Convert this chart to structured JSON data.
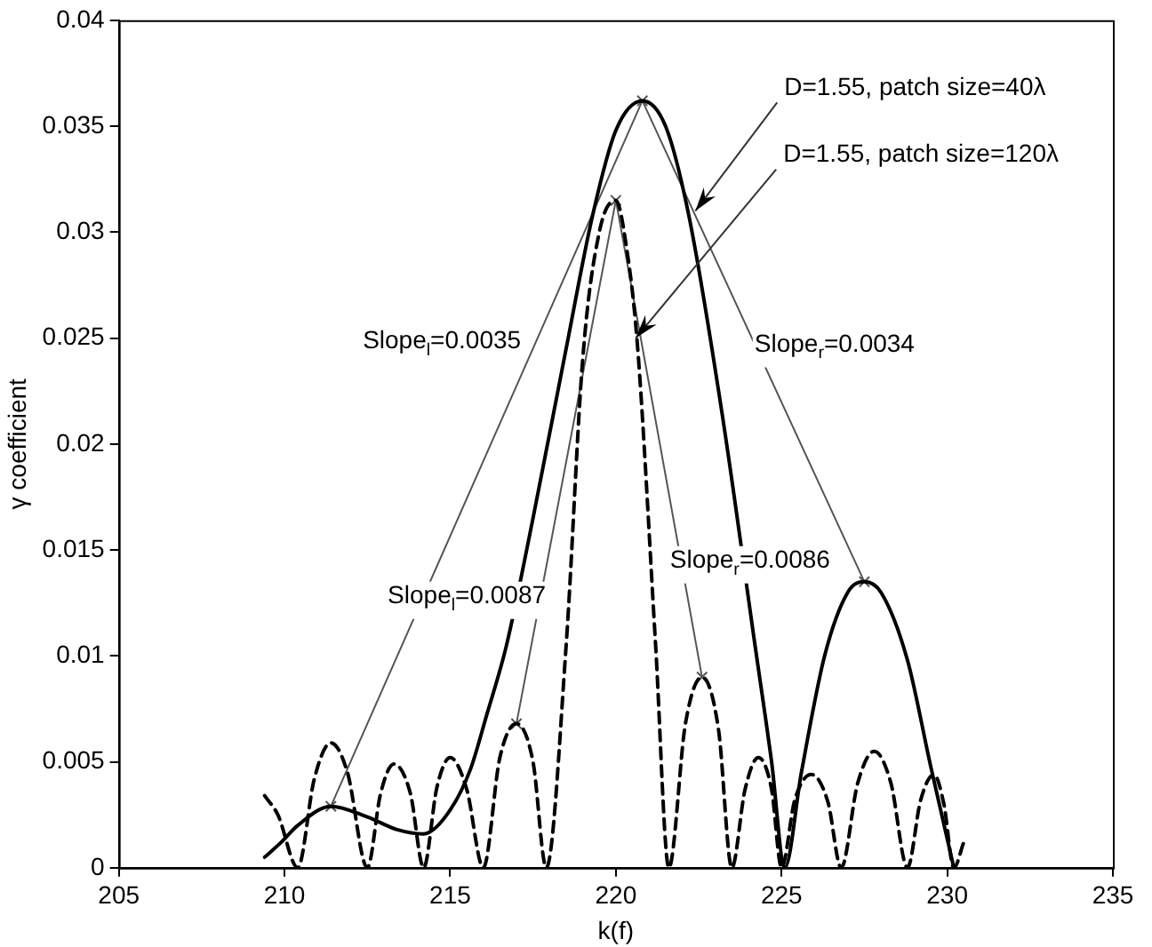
{
  "chart_data": {
    "type": "line",
    "xlabel": "k(f)",
    "ylabel": "γ coefficient",
    "xlim": [
      205,
      235
    ],
    "xticks": [
      205,
      210,
      215,
      220,
      225,
      230,
      235
    ],
    "ylim": [
      0,
      0.04
    ],
    "yticks": [
      0,
      0.005,
      0.01,
      0.015,
      0.02,
      0.025,
      0.03,
      0.035,
      0.04
    ],
    "grid": false,
    "legend": false,
    "series": [
      {
        "type": "line",
        "color": "#000000",
        "line_style": "solid",
        "marker": "none",
        "x": [
          209.4,
          209.9,
          210.4,
          211.4,
          212.5,
          213.4,
          214.2,
          214.9,
          215.6,
          216.1,
          216.7,
          217.5,
          218.5,
          219.3,
          220.0,
          220.8,
          221.5,
          222.2,
          223.2,
          224.2,
          224.7,
          225.1,
          225.6,
          226.3,
          227.0,
          227.5,
          228.0,
          228.8,
          229.5,
          230.2
        ],
        "values": [
          0.0005,
          0.0012,
          0.002,
          0.0029,
          0.0024,
          0.0018,
          0.0016,
          0.0025,
          0.0046,
          0.0072,
          0.0105,
          0.0165,
          0.0245,
          0.0308,
          0.0348,
          0.0362,
          0.035,
          0.0308,
          0.0215,
          0.0105,
          0.005,
          0,
          0.0045,
          0.01,
          0.013,
          0.0135,
          0.013,
          0.0098,
          0.0048,
          0
        ]
      },
      {
        "type": "line",
        "color": "#000000",
        "line_style": "dashed",
        "marker": "none",
        "x": [
          209.4,
          209.8,
          210.4,
          210.9,
          211.4,
          211.9,
          212.5,
          212.9,
          213.3,
          213.8,
          214.2,
          214.6,
          215.0,
          215.5,
          216.0,
          216.5,
          217.0,
          217.5,
          217.9,
          218.5,
          219.0,
          219.5,
          220.0,
          220.3,
          220.65,
          221.2,
          221.6,
          222.1,
          222.6,
          223.1,
          223.5,
          223.9,
          224.3,
          224.7,
          225.0,
          225.4,
          225.9,
          226.4,
          226.8,
          227.3,
          227.8,
          228.3,
          228.8,
          229.2,
          229.6,
          229.9,
          230.2,
          230.5
        ],
        "values": [
          0.0034,
          0.0025,
          0,
          0.0042,
          0.0059,
          0.0045,
          0,
          0.0035,
          0.0049,
          0.0035,
          0,
          0.0038,
          0.0052,
          0.0037,
          0,
          0.0052,
          0.0068,
          0.005,
          0,
          0.0105,
          0.024,
          0.03,
          0.0315,
          0.0295,
          0.0247,
          0.0105,
          0,
          0.0068,
          0.009,
          0.0065,
          0,
          0.0037,
          0.0052,
          0.0037,
          0,
          0.0032,
          0.0044,
          0.0031,
          0,
          0.004,
          0.0055,
          0.004,
          0,
          0.0032,
          0.0044,
          0.003,
          0,
          0.0012
        ]
      },
      {
        "type": "line",
        "color": "#555555",
        "line_style": "solid",
        "marker": "cross",
        "x": [
          211.4,
          220.8,
          227.5
        ],
        "values": [
          0.0029,
          0.0362,
          0.0135
        ]
      },
      {
        "type": "line",
        "color": "#555555",
        "line_style": "solid",
        "marker": "cross",
        "x": [
          217.0,
          220.0,
          222.6
        ],
        "values": [
          0.0068,
          0.0315,
          0.009
        ]
      }
    ],
    "annotations": [
      {
        "text": "D=1.55, patch size=40λ",
        "x": 222.4,
        "y": 0.031
      },
      {
        "text": "D=1.55, patch size=120λ",
        "x": 220.6,
        "y": 0.025
      },
      "Slope$_{l}$=0.0035",
      "Slope$_{r}$=0.0034",
      "Slope$_{l}$=0.0087",
      "Slope$_{r}$=0.0086"
    ]
  }
}
